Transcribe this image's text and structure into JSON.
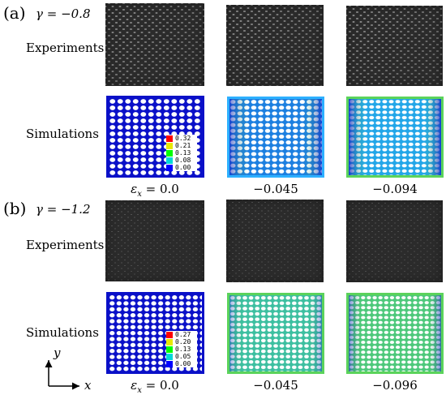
{
  "panels": [
    {
      "tag": "(a)",
      "gamma": "γ = −0.8",
      "row_labels": {
        "experiments": "Experiments",
        "simulations": "Simulations"
      },
      "legend": [
        "0.32",
        "0.21",
        "0.13",
        "0.08",
        "0.00"
      ],
      "captions": [
        "εx = 0.0",
        "−0.045",
        "−0.094"
      ]
    },
    {
      "tag": "(b)",
      "gamma": "γ = −1.2",
      "row_labels": {
        "experiments": "Experiments",
        "simulations": "Simulations"
      },
      "legend": [
        "0.27",
        "0.20",
        "0.13",
        "0.05",
        "0.00"
      ],
      "captions": [
        "εx = 0.0",
        "−0.045",
        "−0.096"
      ]
    }
  ],
  "axes": {
    "y": "y",
    "x": "x"
  },
  "colors": {
    "legend_scale": [
      "#ff0000",
      "#e8e800",
      "#00ff00",
      "#00d8d8",
      "#0000ff"
    ],
    "sim_base": "#0a10c8",
    "sim_deformed_edge": "#2db0ff",
    "sim_deformed_strain": "#5bd35b"
  }
}
